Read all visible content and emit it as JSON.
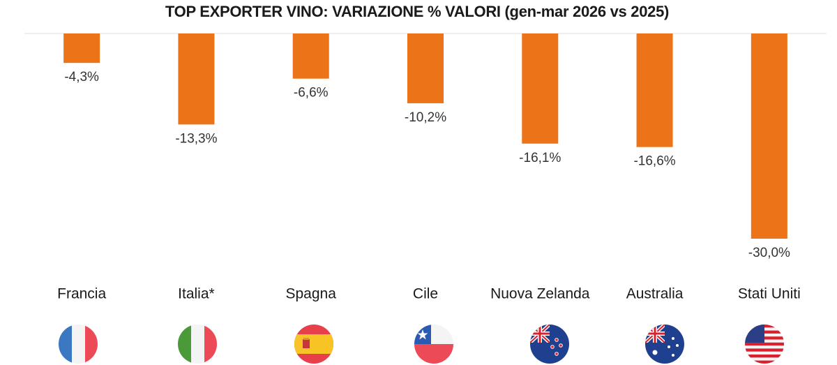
{
  "chart_data": {
    "type": "bar",
    "title": "TOP EXPORTER VINO: VARIAZIONE % VALORI (gen-mar 2026 vs 2025)",
    "categories": [
      "Francia",
      "Italia*",
      "Spagna",
      "Cile",
      "Nuova Zelanda",
      "Australia",
      "Stati Uniti"
    ],
    "values": [
      -4.3,
      -13.3,
      -6.6,
      -10.2,
      -16.1,
      -16.6,
      -30.0
    ],
    "value_labels": [
      "-4,3%",
      "-13,3%",
      "-6,6%",
      "-10,2%",
      "-16,1%",
      "-16,6%",
      "-30,0%"
    ],
    "color": "#ec7318"
  }
}
